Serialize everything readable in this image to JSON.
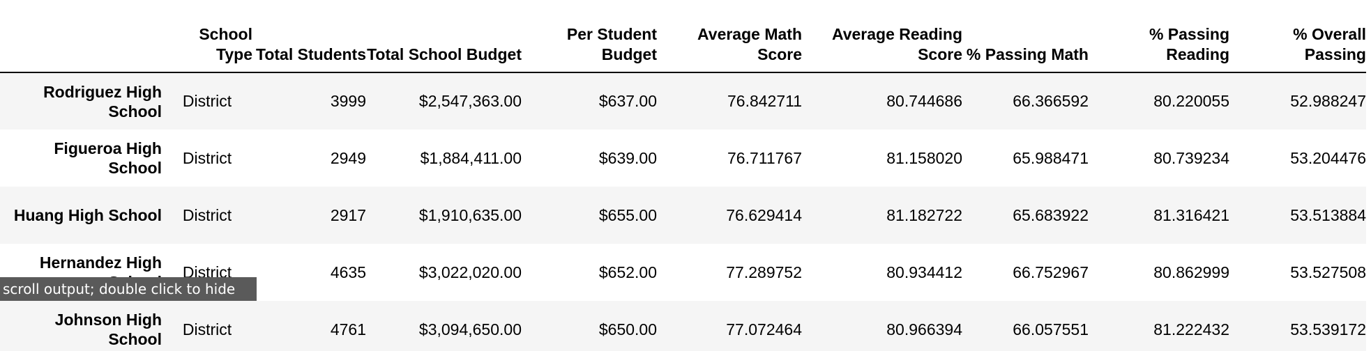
{
  "table": {
    "columns": [
      "",
      "School Type",
      "Total Students",
      "Total School Budget",
      "Per Student Budget",
      "Average Math Score",
      "Average Reading Score",
      "% Passing Math",
      "% Passing Reading",
      "% Overall Passing"
    ],
    "rows": [
      {
        "school": "Rodriguez High School",
        "type": "District",
        "students": "3999",
        "budget": "$2,547,363.00",
        "per_student": "$637.00",
        "avg_math": "76.842711",
        "avg_reading": "80.744686",
        "pass_math": "66.366592",
        "pass_reading": "80.220055",
        "overall": "52.988247"
      },
      {
        "school": "Figueroa High School",
        "type": "District",
        "students": "2949",
        "budget": "$1,884,411.00",
        "per_student": "$639.00",
        "avg_math": "76.711767",
        "avg_reading": "81.158020",
        "pass_math": "65.988471",
        "pass_reading": "80.739234",
        "overall": "53.204476"
      },
      {
        "school": "Huang High School",
        "type": "District",
        "students": "2917",
        "budget": "$1,910,635.00",
        "per_student": "$655.00",
        "avg_math": "76.629414",
        "avg_reading": "81.182722",
        "pass_math": "65.683922",
        "pass_reading": "81.316421",
        "overall": "53.513884"
      },
      {
        "school": "Hernandez High School",
        "type": "District",
        "students": "4635",
        "budget": "$3,022,020.00",
        "per_student": "$652.00",
        "avg_math": "77.289752",
        "avg_reading": "80.934412",
        "pass_math": "66.752967",
        "pass_reading": "80.862999",
        "overall": "53.527508"
      },
      {
        "school": "Johnson High School",
        "type": "District",
        "students": "4761",
        "budget": "$3,094,650.00",
        "per_student": "$650.00",
        "avg_math": "77.072464",
        "avg_reading": "80.966394",
        "pass_math": "66.057551",
        "pass_reading": "81.222432",
        "overall": "53.539172"
      }
    ]
  },
  "tooltip": {
    "text": "scroll output; double click to hide"
  },
  "colors": {
    "row_stripe": "#f5f5f5",
    "tooltip_bg": "#5a5a5a",
    "header_rule": "#000000"
  }
}
